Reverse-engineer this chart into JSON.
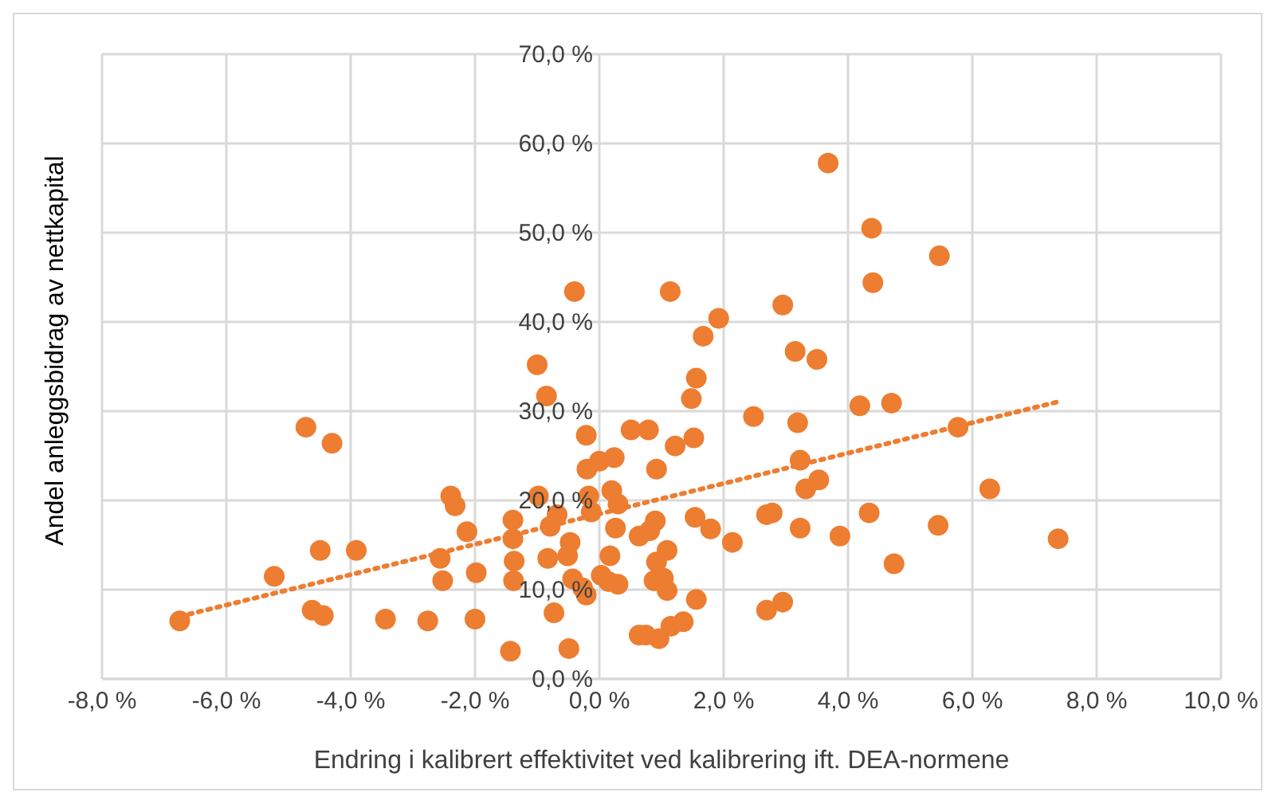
{
  "chart_data": {
    "type": "scatter",
    "xlabel": "Endring i kalibrert effektivitet ved kalibrering ift. DEA-normene",
    "ylabel": "Andel anleggsbidrag av nettkapital",
    "xlim": [
      -8,
      10
    ],
    "ylim": [
      0,
      70
    ],
    "xticks": [
      {
        "value": -8,
        "label": "-8,0 %"
      },
      {
        "value": -6,
        "label": "-6,0 %"
      },
      {
        "value": -4,
        "label": "-4,0 %"
      },
      {
        "value": -2,
        "label": "-2,0 %"
      },
      {
        "value": 0,
        "label": "0,0 %"
      },
      {
        "value": 2,
        "label": "2,0 %"
      },
      {
        "value": 4,
        "label": "4,0 %"
      },
      {
        "value": 6,
        "label": "6,0 %"
      },
      {
        "value": 8,
        "label": "8,0 %"
      },
      {
        "value": 10,
        "label": "10,0 %"
      }
    ],
    "yticks": [
      {
        "value": 0,
        "label": "0,0 %"
      },
      {
        "value": 10,
        "label": "10,0 %"
      },
      {
        "value": 20,
        "label": "20,0 %"
      },
      {
        "value": 30,
        "label": "30,0 %"
      },
      {
        "value": 40,
        "label": "40,0 %"
      },
      {
        "value": 50,
        "label": "50,0 %"
      },
      {
        "value": 60,
        "label": "60,0 %"
      },
      {
        "value": 70,
        "label": "70,0 %"
      }
    ],
    "grid": true,
    "legend": false,
    "series": [
      {
        "color": "#ed7d31",
        "marker": "circle",
        "x": [
          -6.75,
          -5.23,
          -4.72,
          -4.3,
          -4.62,
          -4.44,
          -4.49,
          -3.91,
          -3.44,
          -2.76,
          -2.56,
          -2.52,
          -2.39,
          -2.32,
          -2.13,
          -1.98,
          -2.0,
          -1.39,
          -1.39,
          -1.37,
          -1.38,
          -1.43,
          -1.0,
          -0.85,
          -0.98,
          -0.68,
          -0.79,
          -0.83,
          -0.73,
          -0.47,
          -0.51,
          -0.43,
          -0.27,
          -0.21,
          -0.49,
          -0.4,
          -0.21,
          -0.2,
          0.0,
          0.24,
          -0.17,
          -0.13,
          0.2,
          0.3,
          0.26,
          0.17,
          0.03,
          0.15,
          0.3,
          0.64,
          0.81,
          0.9,
          1.09,
          0.92,
          0.88,
          1.03,
          1.09,
          1.54,
          1.79,
          2.14,
          1.56,
          0.64,
          0.75,
          0.96,
          1.15,
          1.35,
          2.69,
          2.78,
          2.69,
          2.95,
          1.14,
          1.92,
          1.67,
          1.56,
          1.48,
          2.95,
          2.48,
          0.51,
          0.79,
          1.52,
          1.22,
          0.92,
          3.68,
          4.38,
          5.47,
          4.4,
          3.15,
          3.5,
          4.19,
          4.7,
          5.77,
          3.19,
          3.23,
          3.53,
          3.32,
          6.28,
          4.34,
          3.23,
          3.87,
          5.45,
          7.38,
          4.74
        ],
        "values": [
          6.5,
          11.5,
          28.2,
          26.4,
          7.7,
          7.1,
          14.4,
          14.4,
          6.7,
          6.5,
          13.5,
          11.0,
          20.5,
          19.4,
          16.5,
          11.9,
          6.7,
          17.8,
          15.7,
          13.2,
          11.0,
          3.1,
          35.2,
          31.7,
          20.5,
          18.4,
          17.1,
          13.5,
          7.4,
          15.3,
          13.8,
          11.2,
          10.2,
          9.4,
          3.4,
          43.4,
          27.3,
          23.5,
          24.4,
          24.8,
          20.5,
          18.7,
          21.1,
          19.6,
          16.9,
          13.8,
          11.6,
          10.9,
          10.6,
          16.0,
          16.6,
          17.7,
          14.4,
          13.1,
          11.0,
          11.3,
          9.9,
          18.1,
          16.8,
          15.3,
          8.9,
          4.9,
          4.9,
          4.5,
          5.9,
          6.4,
          18.4,
          18.6,
          7.7,
          8.6,
          43.4,
          40.4,
          38.4,
          33.7,
          31.4,
          41.9,
          29.4,
          27.9,
          27.9,
          27.0,
          26.1,
          23.5,
          57.8,
          50.5,
          47.4,
          44.4,
          36.7,
          35.8,
          30.6,
          30.9,
          28.2,
          28.7,
          24.5,
          22.3,
          21.3,
          21.3,
          18.6,
          16.9,
          16.0,
          17.2,
          15.7,
          12.9
        ]
      },
      {
        "type": "line",
        "color": "#ed7d31",
        "marker": "none",
        "line_style": "dotted",
        "x": [
          -6.75,
          7.35
        ],
        "values": [
          7.0,
          31.0
        ]
      }
    ]
  }
}
